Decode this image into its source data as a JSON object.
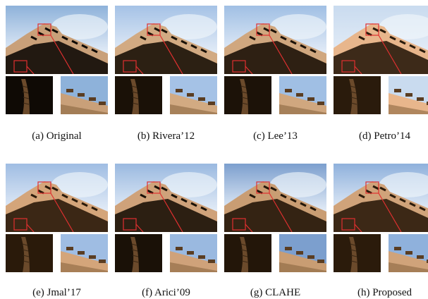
{
  "panels": [
    {
      "id": "a",
      "caption": "(a) Original",
      "tone": "#0f0a05",
      "sky": "#8eb2da",
      "wall": "#c9a079"
    },
    {
      "id": "b",
      "caption": "(b) Rivera’12",
      "tone": "#1a1107",
      "sky": "#a5c2e6",
      "wall": "#d2aa82"
    },
    {
      "id": "c",
      "caption": "(c) Lee’13",
      "tone": "#1c1208",
      "sky": "#a0bfe4",
      "wall": "#d0a77f"
    },
    {
      "id": "d",
      "caption": "(d) Petro’14",
      "tone": "#2a1b0c",
      "sky": "#c9dbef",
      "wall": "#e8b68c"
    },
    {
      "id": "e",
      "caption": "(e) Jmal’17",
      "tone": "#2a1a0a",
      "sky": "#9fbde3",
      "wall": "#d4a57a"
    },
    {
      "id": "f",
      "caption": "(f) Arici’09",
      "tone": "#1a1107",
      "sky": "#9ab9e0",
      "wall": "#cfa27a"
    },
    {
      "id": "g",
      "caption": "(g) CLAHE",
      "tone": "#231609",
      "sky": "#7c9fce",
      "wall": "#c99d73"
    },
    {
      "id": "h",
      "caption": "(h) Proposed",
      "tone": "#2b1b0b",
      "sky": "#8fb1dc",
      "wall": "#d0a37a"
    }
  ],
  "colors": {
    "highlight_box": "#e03030"
  }
}
